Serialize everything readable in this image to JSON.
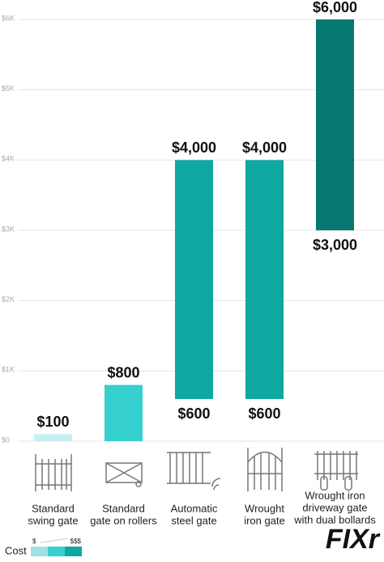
{
  "chart_data": {
    "type": "range-bar",
    "categories": [
      [
        "Standard",
        "swing gate"
      ],
      [
        "Standard",
        "gate on rollers"
      ],
      [
        "Automatic",
        "steel gate"
      ],
      [
        "Wrought",
        "iron gate"
      ],
      [
        "Wrought iron",
        "driveway gate",
        "with dual bollards"
      ]
    ],
    "values": [
      100,
      800,
      4000,
      4000,
      6000
    ],
    "value_labels": [
      "$100",
      "$800",
      "$4,000",
      "$4,000",
      "$6,000"
    ],
    "low_values": [
      null,
      null,
      600,
      600,
      3000
    ],
    "low_value_labels": [
      null,
      null,
      "$600",
      "$600",
      "$3,000"
    ],
    "colors": [
      "#c8eff0",
      "#36d0cf",
      "#0fa8a0",
      "#0fa8a0",
      "#077870"
    ],
    "ylim": [
      0,
      6000
    ],
    "yticks": [
      {
        "value": 0,
        "label": "$0"
      },
      {
        "value": 1000,
        "label": "$1K"
      },
      {
        "value": 2000,
        "label": "$2K"
      },
      {
        "value": 3000,
        "label": "$3K"
      },
      {
        "value": 4000,
        "label": "$4K"
      },
      {
        "value": 5000,
        "label": "$5K"
      },
      {
        "value": 6000,
        "label": "$6K"
      }
    ],
    "grid": true,
    "legend": {
      "title": "Cost",
      "low_label": "$",
      "high_label": "$$$",
      "colors": [
        "#9ee3e3",
        "#36d0cf",
        "#0fa8a0"
      ]
    },
    "logo": "FIXr"
  }
}
